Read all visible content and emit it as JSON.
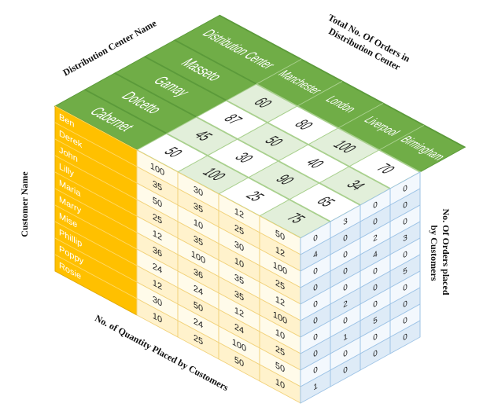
{
  "labels": {
    "distribution_center_name": "Distribution Center Name",
    "total_orders": [
      "Total No. Of Orders in",
      "Distribution Center"
    ],
    "customer_name": "Customer Name",
    "orders_by_customer": [
      "No. Of Orders placed",
      "by Customers"
    ],
    "quantity_by_customer": "No. of Quantity Placed by Customers"
  },
  "top": {
    "header": "Distribution Center",
    "centers": [
      "Manchester",
      "London",
      "Liverpool",
      "Birmingham"
    ],
    "wines": [
      "Cabernet",
      "Dolcetto",
      "Gamay",
      "Masseto"
    ],
    "totals": [
      [
        50,
        45,
        87,
        60
      ],
      [
        100,
        30,
        50,
        80
      ],
      [
        25,
        90,
        40,
        100
      ],
      [
        75,
        65,
        34,
        70
      ]
    ]
  },
  "customers": [
    "Ben",
    "Derek",
    "John",
    "Lilly",
    "Maria",
    "Marry",
    "Mise",
    "Phillip",
    "Poppy",
    "Rosie"
  ],
  "quantities": [
    [
      100,
      30,
      12,
      50
    ],
    [
      35,
      35,
      25,
      12
    ],
    [
      50,
      10,
      30,
      100
    ],
    [
      25,
      35,
      10,
      25
    ],
    [
      12,
      100,
      35,
      12
    ],
    [
      36,
      36,
      35,
      100
    ],
    [
      24,
      24,
      12,
      10
    ],
    [
      12,
      50,
      24,
      25
    ],
    [
      30,
      24,
      100,
      50
    ],
    [
      10,
      25,
      50,
      10
    ]
  ],
  "orders": [
    [
      0,
      3,
      0,
      0
    ],
    [
      4,
      0,
      0,
      0
    ],
    [
      0,
      0,
      2,
      0
    ],
    [
      0,
      0,
      4,
      3
    ],
    [
      0,
      0,
      0,
      0
    ],
    [
      0,
      2,
      0,
      5
    ],
    [
      0,
      0,
      0,
      0
    ],
    [
      0,
      1,
      5,
      0
    ],
    [
      0,
      0,
      0,
      0
    ],
    [
      1,
      0,
      0,
      0
    ]
  ]
}
